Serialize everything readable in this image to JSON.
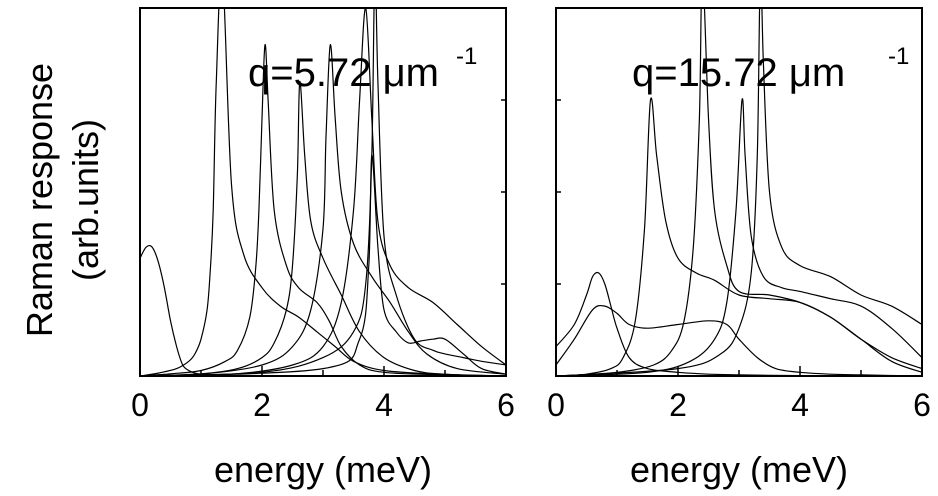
{
  "chart_data": [
    {
      "type": "line",
      "ylabel_line1": "Raman response",
      "ylabel_line2": "(arb.units)",
      "xlabel": "energy (meV)",
      "annotation": {
        "text": "q=5.72 μm",
        "sup": "-1"
      },
      "xlim": [
        0,
        6
      ],
      "ylim": [
        0,
        1
      ],
      "xticks": [
        0,
        2,
        4,
        6
      ],
      "series": [
        {
          "x": [
            0,
            0.1,
            0.2,
            0.3,
            0.4,
            0.5,
            0.6,
            0.7,
            0.8,
            0.9,
            1.0,
            1.2,
            1.5,
            2.0,
            3.0,
            6.0
          ],
          "y": [
            0.32,
            0.35,
            0.35,
            0.31,
            0.24,
            0.15,
            0.08,
            0.03,
            0.015,
            0.008,
            0.005,
            0.003,
            0.002,
            0.001,
            0.0,
            0.0
          ]
        },
        {
          "x": [
            0,
            0.3,
            0.6,
            0.8,
            0.9,
            1.0,
            1.1,
            1.15,
            1.2,
            1.25,
            1.35,
            1.5,
            1.7,
            2.0,
            2.3,
            2.6,
            2.9,
            3.2,
            3.5,
            4.0,
            5.0,
            6.0
          ],
          "y": [
            0.0,
            0.008,
            0.02,
            0.04,
            0.06,
            0.1,
            0.18,
            0.28,
            0.45,
            0.8,
            1.1,
            0.52,
            0.33,
            0.24,
            0.19,
            0.16,
            0.12,
            0.08,
            0.04,
            0.015,
            0.004,
            0.0
          ]
        },
        {
          "x": [
            0,
            0.5,
            1.0,
            1.4,
            1.6,
            1.8,
            1.9,
            1.95,
            2.0,
            2.05,
            2.1,
            2.2,
            2.4,
            2.6,
            2.9,
            3.1,
            3.3,
            3.6,
            4.0,
            5.0,
            6.0
          ],
          "y": [
            0.0,
            0.006,
            0.015,
            0.04,
            0.07,
            0.16,
            0.3,
            0.45,
            0.7,
            0.9,
            0.75,
            0.45,
            0.3,
            0.24,
            0.2,
            0.15,
            0.08,
            0.03,
            0.01,
            0.003,
            0.0
          ]
        },
        {
          "x": [
            0,
            1.0,
            1.6,
            2.0,
            2.2,
            2.4,
            2.5,
            2.58,
            2.62,
            2.7,
            2.8,
            3.0,
            3.3,
            3.6,
            4.0,
            4.5,
            5.0,
            6.0
          ],
          "y": [
            0.0,
            0.006,
            0.02,
            0.05,
            0.09,
            0.18,
            0.3,
            0.55,
            0.8,
            0.6,
            0.42,
            0.32,
            0.22,
            0.12,
            0.05,
            0.015,
            0.005,
            0.0
          ]
        },
        {
          "x": [
            0,
            1.0,
            2.0,
            2.5,
            2.8,
            3.0,
            3.05,
            3.12,
            3.2,
            3.3,
            3.5,
            3.8,
            4.1,
            4.4,
            4.7,
            5.2,
            6.0
          ],
          "y": [
            0.0,
            0.005,
            0.03,
            0.08,
            0.18,
            0.4,
            0.65,
            0.9,
            0.7,
            0.5,
            0.36,
            0.27,
            0.2,
            0.12,
            0.06,
            0.02,
            0.005
          ]
        },
        {
          "x": [
            0,
            1.5,
            2.5,
            3.0,
            3.3,
            3.5,
            3.6,
            3.7,
            3.8,
            3.9,
            4.1,
            4.4,
            4.8,
            5.2,
            5.6,
            6.0
          ],
          "y": [
            0.0,
            0.005,
            0.03,
            0.08,
            0.2,
            0.45,
            0.75,
            1.0,
            0.7,
            0.42,
            0.3,
            0.24,
            0.2,
            0.14,
            0.08,
            0.03
          ]
        },
        {
          "x": [
            0,
            2.0,
            3.0,
            3.5,
            3.7,
            3.8,
            3.85,
            3.9,
            4.0,
            4.2,
            4.5,
            4.8,
            5.0,
            5.3,
            5.6,
            6.0
          ],
          "y": [
            0.0,
            0.01,
            0.05,
            0.12,
            0.25,
            0.6,
            1.1,
            0.8,
            0.38,
            0.22,
            0.1,
            0.07,
            0.06,
            0.05,
            0.04,
            0.03
          ]
        },
        {
          "x": [
            0,
            3.0,
            3.6,
            3.75,
            3.8,
            3.9,
            4.0,
            4.2,
            4.4,
            4.6,
            4.8,
            5.0,
            5.3,
            5.6,
            6.0
          ],
          "y": [
            0.0,
            0.02,
            0.1,
            0.3,
            0.6,
            0.35,
            0.18,
            0.12,
            0.09,
            0.095,
            0.1,
            0.1,
            0.06,
            0.02,
            0.005
          ]
        }
      ]
    },
    {
      "type": "line",
      "xlabel": "energy (meV)",
      "annotation": {
        "text": "q=15.72 μm",
        "sup": "-1"
      },
      "xlim": [
        0,
        6
      ],
      "ylim": [
        0,
        1
      ],
      "xticks": [
        0,
        2,
        4,
        6
      ],
      "series": [
        {
          "x": [
            0,
            0.3,
            0.5,
            0.6,
            0.7,
            0.8,
            0.9,
            1.0,
            1.2,
            1.5,
            2.0,
            2.5,
            3.0,
            3.5,
            4.0,
            4.5,
            5.0,
            5.5,
            6.0
          ],
          "y": [
            0.08,
            0.14,
            0.22,
            0.27,
            0.28,
            0.25,
            0.19,
            0.13,
            0.05,
            0.02,
            0.01,
            0.005,
            0.003,
            0.002,
            0.001,
            0.0,
            0.0,
            0.0,
            0.0
          ]
        },
        {
          "x": [
            0,
            0.3,
            0.6,
            0.8,
            1.0,
            1.2,
            1.5,
            2.0,
            2.5,
            2.8,
            3.0,
            3.3,
            3.6,
            4.0,
            4.5,
            5.0,
            6.0
          ],
          "y": [
            0.03,
            0.1,
            0.18,
            0.19,
            0.17,
            0.14,
            0.13,
            0.14,
            0.15,
            0.14,
            0.1,
            0.05,
            0.02,
            0.01,
            0.005,
            0.003,
            0.0
          ]
        },
        {
          "x": [
            0,
            0.5,
            0.9,
            1.1,
            1.3,
            1.45,
            1.55,
            1.65,
            1.8,
            2.0,
            2.3,
            2.6,
            3.0,
            3.5,
            4.0,
            4.5,
            5.0,
            5.5,
            6.0
          ],
          "y": [
            0.0,
            0.005,
            0.02,
            0.05,
            0.15,
            0.4,
            0.75,
            0.6,
            0.42,
            0.32,
            0.28,
            0.26,
            0.22,
            0.21,
            0.2,
            0.16,
            0.1,
            0.05,
            0.02
          ]
        },
        {
          "x": [
            0,
            1.0,
            1.6,
            1.9,
            2.1,
            2.25,
            2.35,
            2.4,
            2.5,
            2.6,
            2.8,
            3.0,
            3.5,
            4.0,
            4.5,
            5.0,
            5.5,
            6.0
          ],
          "y": [
            0.0,
            0.01,
            0.03,
            0.07,
            0.15,
            0.35,
            0.7,
            1.1,
            0.7,
            0.45,
            0.3,
            0.23,
            0.22,
            0.2,
            0.16,
            0.1,
            0.04,
            0.01
          ]
        },
        {
          "x": [
            0,
            1.5,
            2.2,
            2.6,
            2.8,
            2.95,
            3.05,
            3.1,
            3.2,
            3.4,
            3.7,
            4.0,
            4.5,
            5.0,
            5.5,
            6.0
          ],
          "y": [
            0.0,
            0.01,
            0.04,
            0.1,
            0.2,
            0.45,
            0.75,
            0.6,
            0.38,
            0.27,
            0.24,
            0.23,
            0.21,
            0.19,
            0.13,
            0.05
          ]
        },
        {
          "x": [
            0,
            2.0,
            2.7,
            3.0,
            3.2,
            3.3,
            3.35,
            3.4,
            3.5,
            3.7,
            4.0,
            4.5,
            5.0,
            5.5,
            6.0
          ],
          "y": [
            0.0,
            0.02,
            0.06,
            0.13,
            0.28,
            0.6,
            1.1,
            0.85,
            0.5,
            0.35,
            0.3,
            0.27,
            0.22,
            0.19,
            0.14
          ]
        }
      ]
    }
  ]
}
